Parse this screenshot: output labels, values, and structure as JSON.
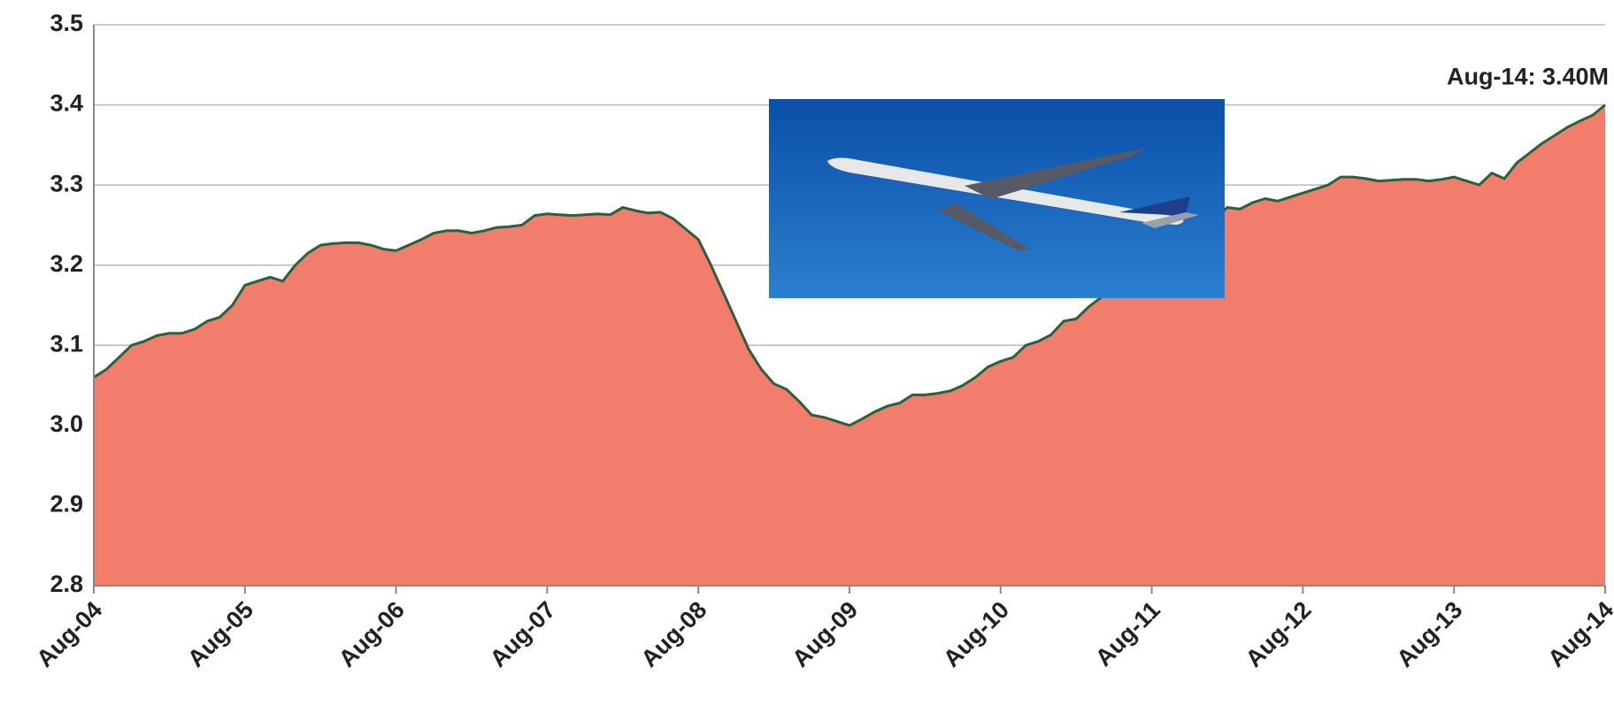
{
  "chart_data": {
    "type": "area",
    "annotation": "Aug-14: 3.40M",
    "categories": [
      "Aug-04",
      null,
      null,
      null,
      null,
      null,
      null,
      null,
      null,
      null,
      null,
      null,
      "Aug-05",
      null,
      null,
      null,
      null,
      null,
      null,
      null,
      null,
      null,
      null,
      null,
      "Aug-06",
      null,
      null,
      null,
      null,
      null,
      null,
      null,
      null,
      null,
      null,
      null,
      "Aug-07",
      null,
      null,
      null,
      null,
      null,
      null,
      null,
      null,
      null,
      null,
      null,
      "Aug-08",
      null,
      null,
      null,
      null,
      null,
      null,
      null,
      null,
      null,
      null,
      null,
      "Aug-09",
      null,
      null,
      null,
      null,
      null,
      null,
      null,
      null,
      null,
      null,
      null,
      "Aug-10",
      null,
      null,
      null,
      null,
      null,
      null,
      null,
      null,
      null,
      null,
      null,
      "Aug-11",
      null,
      null,
      null,
      null,
      null,
      null,
      null,
      null,
      null,
      null,
      null,
      "Aug-12",
      null,
      null,
      null,
      null,
      null,
      null,
      null,
      null,
      null,
      null,
      null,
      "Aug-13",
      null,
      null,
      null,
      null,
      null,
      null,
      null,
      null,
      null,
      null,
      null,
      "Aug-14"
    ],
    "values": [
      3.06,
      3.07,
      3.085,
      3.1,
      3.105,
      3.112,
      3.115,
      3.115,
      3.12,
      3.13,
      3.135,
      3.15,
      3.175,
      3.18,
      3.185,
      3.18,
      3.2,
      3.215,
      3.225,
      3.227,
      3.228,
      3.228,
      3.225,
      3.22,
      3.218,
      3.225,
      3.232,
      3.24,
      3.243,
      3.243,
      3.24,
      3.243,
      3.247,
      3.248,
      3.25,
      3.262,
      3.264,
      3.263,
      3.262,
      3.263,
      3.264,
      3.263,
      3.272,
      3.268,
      3.265,
      3.266,
      3.258,
      3.245,
      3.232,
      3.2,
      3.165,
      3.13,
      3.095,
      3.07,
      3.052,
      3.045,
      3.03,
      3.013,
      3.01,
      3.005,
      3.0,
      3.008,
      3.017,
      3.024,
      3.028,
      3.038,
      3.038,
      3.04,
      3.043,
      3.05,
      3.06,
      3.073,
      3.08,
      3.085,
      3.1,
      3.105,
      3.113,
      3.13,
      3.133,
      3.148,
      3.16,
      3.17,
      3.18,
      3.19,
      3.2,
      3.215,
      3.23,
      3.24,
      3.25,
      3.258,
      3.272,
      3.27,
      3.278,
      3.283,
      3.28,
      3.285,
      3.29,
      3.295,
      3.3,
      3.31,
      3.31,
      3.308,
      3.305,
      3.306,
      3.307,
      3.307,
      3.305,
      3.307,
      3.31,
      3.305,
      3.3,
      3.315,
      3.308,
      3.328,
      3.34,
      3.352,
      3.362,
      3.372,
      3.38,
      3.387,
      3.4
    ],
    "color": "#f27d6c",
    "line_color": "#2e5e3a",
    "ylim": [
      2.8,
      3.5
    ],
    "yticks": [
      2.8,
      2.9,
      {
        "value": 3,
        "label": "3.0"
      },
      3.1,
      3.2,
      3.3,
      3.4,
      3.5
    ],
    "grid": true
  }
}
